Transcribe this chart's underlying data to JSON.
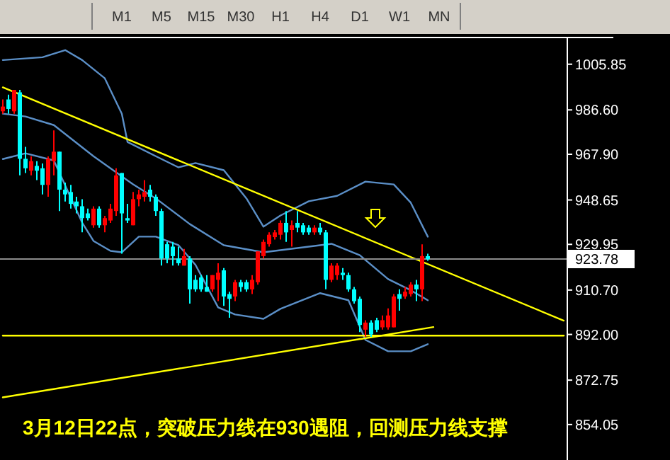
{
  "chart_data": {
    "type": "candlestick",
    "categories": [
      null,
      null,
      null,
      null,
      null,
      null,
      null,
      null,
      null,
      null,
      null,
      null,
      null,
      null,
      null,
      null,
      null,
      null,
      null,
      null,
      null,
      null,
      null,
      null,
      null,
      null,
      null,
      null,
      null,
      null,
      null,
      null,
      null,
      null,
      null,
      null,
      null,
      null,
      null,
      null,
      null,
      null,
      null,
      null,
      null,
      null,
      null,
      null,
      null,
      null,
      null,
      null,
      null,
      null,
      null,
      null,
      null,
      null,
      null,
      null,
      null,
      null,
      null,
      null,
      null,
      null,
      null,
      null,
      null,
      null,
      null,
      null,
      null,
      null,
      null,
      null,
      null,
      null,
      null,
      null,
      null,
      null,
      null,
      null,
      null,
      null,
      null,
      null,
      null,
      null,
      null,
      null,
      null,
      null,
      null,
      null,
      null,
      null,
      null,
      null
    ],
    "ohlc": [
      [
        986,
        991,
        985,
        988
      ],
      [
        991,
        993,
        985,
        987
      ],
      [
        986,
        995,
        985,
        995
      ],
      [
        994,
        995,
        959,
        966
      ],
      [
        966,
        971,
        960,
        962
      ],
      [
        961,
        967,
        959,
        965
      ],
      [
        963,
        965,
        957,
        961
      ],
      [
        962,
        964,
        951,
        955
      ],
      [
        955,
        967,
        950,
        966
      ],
      [
        965,
        978,
        959,
        969
      ],
      [
        969,
        969,
        944,
        953
      ],
      [
        953,
        956,
        948,
        951
      ],
      [
        952,
        955,
        945,
        947
      ],
      [
        948,
        950,
        943,
        946
      ],
      [
        946,
        949,
        935,
        941
      ],
      [
        943,
        945,
        940,
        941
      ],
      [
        938,
        946,
        937,
        945
      ],
      [
        945,
        946,
        937,
        938
      ],
      [
        938,
        942,
        935,
        941
      ],
      [
        940,
        947,
        939,
        945
      ],
      [
        944,
        962,
        942,
        959
      ],
      [
        960,
        960,
        926,
        943
      ],
      [
        941,
        947,
        939,
        940
      ],
      [
        938,
        952,
        938,
        949
      ],
      [
        949,
        953,
        946,
        951
      ],
      [
        950,
        957,
        948,
        952
      ],
      [
        953,
        955,
        948,
        950
      ],
      [
        950,
        951,
        942,
        944
      ],
      [
        944,
        945,
        921,
        924
      ],
      [
        930,
        931,
        922,
        924
      ],
      [
        929,
        931,
        921,
        925
      ],
      [
        924,
        929,
        921,
        922
      ],
      [
        921,
        928,
        921,
        925
      ],
      [
        924,
        925,
        905,
        911
      ],
      [
        915,
        917,
        910,
        911
      ],
      [
        916,
        917,
        910,
        911
      ],
      [
        912,
        917,
        910,
        910
      ],
      [
        911,
        917,
        910,
        917
      ],
      [
        915,
        922,
        906,
        918
      ],
      [
        919,
        920,
        904,
        908
      ],
      [
        909,
        910,
        899,
        907
      ],
      [
        908,
        915,
        906,
        914
      ],
      [
        914,
        915,
        910,
        912
      ],
      [
        914,
        915,
        910,
        911
      ],
      [
        911,
        917,
        909,
        915
      ],
      [
        914,
        927,
        913,
        927
      ],
      [
        925,
        932,
        924,
        931
      ],
      [
        930,
        935,
        929,
        934
      ],
      [
        933,
        936,
        932,
        935
      ],
      [
        934,
        940,
        932,
        939
      ],
      [
        939,
        944,
        931,
        935
      ],
      [
        936,
        940,
        929,
        938
      ],
      [
        939,
        944,
        935,
        937
      ],
      [
        938,
        939,
        934,
        935
      ],
      [
        937,
        938,
        934,
        935
      ],
      [
        935,
        938,
        934,
        937
      ],
      [
        937,
        939,
        934,
        935
      ],
      [
        935,
        936,
        911,
        915
      ],
      [
        915,
        922,
        914,
        921
      ],
      [
        917,
        922,
        915,
        921
      ],
      [
        918,
        920,
        915,
        917
      ],
      [
        917,
        918,
        910,
        911
      ],
      [
        911,
        912,
        905,
        906
      ],
      [
        907,
        908,
        893,
        896
      ],
      [
        894,
        898,
        891,
        897
      ],
      [
        897,
        898,
        891,
        892
      ],
      [
        898,
        899,
        893,
        894
      ],
      [
        895,
        900,
        894,
        898
      ],
      [
        895,
        903,
        894,
        900
      ],
      [
        895,
        909,
        895,
        908
      ],
      [
        909,
        911,
        902,
        907
      ],
      [
        908,
        912,
        907,
        910
      ],
      [
        909,
        914,
        908,
        913
      ],
      [
        913,
        915,
        906,
        911
      ],
      [
        911,
        930,
        906,
        925
      ],
      [
        925,
        926,
        923,
        923.78
      ],
      null,
      null,
      null,
      null,
      null,
      null,
      null,
      null,
      null,
      null,
      null,
      null,
      null,
      null,
      null,
      null,
      null,
      null,
      null,
      null,
      null,
      null,
      null,
      null
    ],
    "colors": [
      "#ff0000",
      "#00ffff",
      "#ff0000",
      "#00ffff",
      "#00ffff",
      "#ff0000",
      "#00ffff",
      "#00ffff",
      "#ff0000",
      "#ff0000",
      "#00ffff",
      "#00ffff",
      "#00ffff",
      "#00ffff",
      "#00ffff",
      "#00ffff",
      "#ff0000",
      "#00ffff",
      "#ff0000",
      "#ff0000",
      "#ff0000",
      "#00ffff",
      "#00ffff",
      "#ff0000",
      "#ff0000",
      "#ff0000",
      "#00ffff",
      "#00ffff",
      "#00ffff",
      "#00ffff",
      "#00ffff",
      "#00ffff",
      "#ff0000",
      "#00ffff",
      "#00ffff",
      "#00ffff",
      "#00ffff",
      "#ff0000",
      "#ff0000",
      "#00ffff",
      "#00ffff",
      "#ff0000",
      "#00ffff",
      "#00ffff",
      "#ff0000",
      "#ff0000",
      "#ff0000",
      "#ff0000",
      "#ff0000",
      "#ff0000",
      "#00ffff",
      "#ff0000",
      "#00ffff",
      "#00ffff",
      "#00ffff",
      "#ff0000",
      "#00ffff",
      "#00ffff",
      "#ff0000",
      "#ff0000",
      "#00ffff",
      "#00ffff",
      "#00ffff",
      "#00ffff",
      "#ff0000",
      "#00ffff",
      "#00ffff",
      "#ff0000",
      "#ff0000",
      "#ff0000",
      "#00ffff",
      "#ff0000",
      "#ff0000",
      "#00ffff",
      "#ff0000",
      "#00ffff",
      null,
      null,
      null,
      null,
      null,
      null,
      null,
      null,
      null,
      null,
      null,
      null,
      null,
      null,
      null,
      null,
      null,
      null,
      null,
      null,
      null,
      null,
      null,
      null
    ],
    "series": [
      {
        "type": "line",
        "color": "#5b8fc7",
        "values": [
          1007.6,
          null,
          null,
          null,
          null,
          null,
          null,
          1008.8,
          null,
          null,
          null,
          1011.8,
          null,
          null,
          1007.6,
          null,
          null,
          null,
          999.9,
          null,
          null,
          985.0,
          973.1,
          null,
          null,
          null,
          null,
          967.1,
          null,
          null,
          null,
          962.4,
          null,
          null,
          964.2,
          null,
          null,
          null,
          null,
          961.2,
          null,
          null,
          null,
          949.3,
          null,
          null,
          937.4,
          null,
          null,
          942.1,
          null,
          null,
          null,
          null,
          948.1,
          null,
          null,
          null,
          null,
          950.4,
          null,
          null,
          null,
          null,
          956.4,
          null,
          null,
          null,
          null,
          955.2,
          null,
          null,
          947.5,
          null,
          null,
          933.2,
          null,
          null,
          null,
          null,
          null,
          null,
          null,
          null,
          null,
          null,
          null,
          null,
          null,
          null,
          null,
          null,
          null,
          null,
          null,
          null,
          null,
          null,
          null,
          null
        ]
      },
      {
        "type": "line",
        "color": "#5b8fc7",
        "values": [
          985.0,
          null,
          null,
          null,
          983.8,
          null,
          null,
          null,
          null,
          980.2,
          null,
          null,
          null,
          null,
          null,
          null,
          967.1,
          null,
          null,
          null,
          null,
          null,
          null,
          955.2,
          null,
          null,
          null,
          949.3,
          null,
          null,
          null,
          null,
          null,
          938.5,
          null,
          null,
          null,
          null,
          null,
          929.6,
          null,
          null,
          null,
          null,
          null,
          null,
          926.6,
          null,
          null,
          null,
          null,
          null,
          928.4,
          null,
          null,
          null,
          null,
          null,
          930.2,
          null,
          null,
          null,
          null,
          925.4,
          null,
          null,
          null,
          null,
          915.3,
          null,
          null,
          null,
          910.6,
          null,
          null,
          906.4,
          null,
          null,
          null,
          null,
          null,
          null,
          null,
          null,
          null,
          null,
          null,
          null,
          null,
          null,
          null,
          null,
          null,
          null,
          null,
          null,
          null,
          null,
          null,
          null
        ]
      },
      {
        "type": "line",
        "color": "#5b8fc7",
        "values": [
          965.9,
          null,
          null,
          null,
          968.3,
          null,
          null,
          null,
          null,
          965.3,
          null,
          null,
          null,
          null,
          939.1,
          null,
          931.4,
          null,
          null,
          927.2,
          null,
          926.6,
          null,
          null,
          933.2,
          null,
          null,
          933.2,
          null,
          null,
          null,
          929.6,
          null,
          null,
          921.3,
          null,
          null,
          null,
          903.4,
          null,
          null,
          900.4,
          null,
          null,
          null,
          null,
          898.6,
          null,
          null,
          902.8,
          null,
          null,
          null,
          null,
          null,
          null,
          909.4,
          null,
          null,
          null,
          null,
          906.4,
          null,
          null,
          889.7,
          null,
          null,
          null,
          884.9,
          null,
          null,
          null,
          884.9,
          null,
          null,
          887.9,
          null,
          null,
          null,
          null,
          null,
          null,
          null,
          null,
          null,
          null,
          null,
          null,
          null,
          null,
          null,
          null,
          null,
          null,
          null,
          null,
          null,
          null,
          null,
          null
        ]
      },
      {
        "type": "line",
        "color": "#ffff00",
        "values": [
          996.1,
          null,
          null,
          null,
          null,
          null,
          null,
          null,
          null,
          null,
          null,
          null,
          null,
          null,
          null,
          null,
          null,
          null,
          null,
          null,
          null,
          null,
          null,
          null,
          null,
          null,
          null,
          null,
          null,
          null,
          null,
          null,
          null,
          null,
          null,
          null,
          null,
          null,
          null,
          null,
          null,
          null,
          null,
          null,
          null,
          null,
          null,
          null,
          null,
          null,
          null,
          null,
          null,
          null,
          null,
          null,
          null,
          null,
          null,
          null,
          null,
          null,
          null,
          null,
          null,
          null,
          null,
          null,
          null,
          null,
          null,
          null,
          null,
          null,
          null,
          null,
          null,
          null,
          null,
          null,
          null,
          null,
          null,
          null,
          null,
          null,
          null,
          null,
          null,
          null,
          null,
          null,
          null,
          null,
          null,
          null,
          null,
          null,
          null,
          897.8
        ]
      },
      {
        "type": "line",
        "color": "#ffff00",
        "values": [
          891.5,
          null,
          null,
          null,
          null,
          null,
          null,
          null,
          null,
          null,
          null,
          null,
          null,
          null,
          null,
          null,
          null,
          null,
          null,
          null,
          null,
          null,
          null,
          null,
          null,
          null,
          null,
          null,
          null,
          null,
          null,
          null,
          null,
          null,
          null,
          null,
          null,
          null,
          null,
          null,
          null,
          null,
          null,
          null,
          null,
          null,
          null,
          null,
          null,
          null,
          null,
          null,
          null,
          null,
          null,
          null,
          null,
          null,
          null,
          null,
          null,
          null,
          null,
          null,
          null,
          null,
          null,
          null,
          null,
          null,
          null,
          null,
          null,
          null,
          null,
          null,
          null,
          null,
          null,
          null,
          null,
          null,
          null,
          null,
          null,
          null,
          null,
          null,
          null,
          null,
          null,
          null,
          null,
          null,
          null,
          null,
          null,
          null,
          null,
          891.5
        ]
      },
      {
        "type": "line",
        "color": "#ffff00",
        "values": [
          865.5,
          null,
          null,
          null,
          null,
          null,
          null,
          null,
          null,
          null,
          null,
          null,
          null,
          null,
          null,
          null,
          null,
          null,
          null,
          null,
          null,
          null,
          null,
          null,
          null,
          null,
          null,
          null,
          null,
          null,
          null,
          null,
          null,
          null,
          null,
          null,
          null,
          null,
          null,
          null,
          null,
          null,
          null,
          null,
          null,
          null,
          null,
          null,
          null,
          null,
          null,
          null,
          null,
          null,
          null,
          null,
          null,
          null,
          null,
          null,
          null,
          null,
          null,
          null,
          null,
          null,
          null,
          null,
          null,
          null,
          null,
          null,
          null,
          null,
          null,
          null,
          895.1,
          null,
          null,
          null,
          null,
          null,
          null,
          null,
          null,
          null,
          null,
          null,
          null,
          null,
          null,
          null,
          null,
          null,
          null,
          null,
          null,
          null,
          null,
          null
        ]
      }
    ],
    "ylim": [
      839.1,
      1017.1
    ],
    "yticks": [
      1005.85,
      {
        "value": 986.6,
        "label": "986.60"
      },
      {
        "value": 967.9,
        "label": "967.90"
      },
      948.65,
      929.95,
      {
        "value": 910.7,
        "label": "910.70"
      },
      {
        "value": 892,
        "label": "892.00"
      },
      872.75,
      854.05
    ],
    "ref_lines": [
      {
        "axis": "y",
        "value": 923.78,
        "label": "923.78",
        "color": "#8c8c8c"
      }
    ],
    "grid": false,
    "annotations": [
      "3月12日22点，突破压力线在930遇阻，回测压力线支撑",
      "M1",
      "M5",
      "M15",
      "M30",
      "H1",
      "H4",
      "D1",
      "W1",
      "MN"
    ]
  }
}
